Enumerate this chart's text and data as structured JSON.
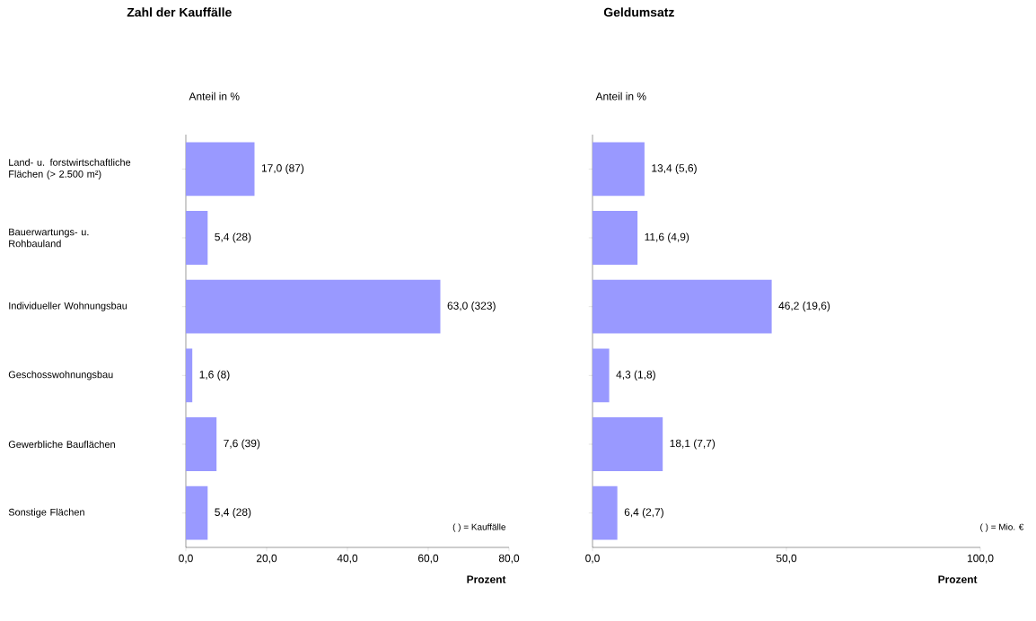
{
  "chart_data": [
    {
      "type": "bar",
      "orientation": "horizontal",
      "title": "Zahl der Kauffälle",
      "subtitle": "Anteil in %",
      "xlabel": "Prozent",
      "categories": [
        "Land- u. forstwirtschaftliche Flächen (> 2.500 m²)",
        "Bauerwartungs- u. Rohbauland",
        "Individueller Wohnungsbau",
        "Geschosswohnungsbau",
        "Gewerbliche Bauflächen",
        "Sonstige Flächen"
      ],
      "values": [
        17.0,
        5.4,
        63.0,
        1.6,
        7.6,
        5.4
      ],
      "value_labels": [
        "17,0  (87)",
        "5,4  (28)",
        "63,0  (323)",
        "1,6 (8)",
        "7,6  (39)",
        "5,4  (28)"
      ],
      "color": "#9999ff",
      "xlim": [
        0,
        80
      ],
      "xticks": [
        {
          "value": 0,
          "label": "0,0"
        },
        {
          "value": 20,
          "label": "20,0"
        },
        {
          "value": 40,
          "label": "40,0"
        },
        {
          "value": 60,
          "label": "60,0"
        },
        {
          "value": 80,
          "label": "80,0"
        }
      ],
      "annotations": [
        "( ) = Kauffälle"
      ]
    },
    {
      "type": "bar",
      "orientation": "horizontal",
      "title": "Geldumsatz",
      "subtitle": "Anteil in %",
      "xlabel": "Prozent",
      "categories": [
        null,
        null,
        null,
        null,
        null,
        null
      ],
      "values": [
        13.4,
        11.6,
        46.2,
        4.3,
        18.1,
        6.4
      ],
      "value_labels": [
        "13,4  (5,6)",
        "11,6  (4,9)",
        "46,2  (19,6)",
        "4,3  (1,8)",
        "18,1  (7,7)",
        "6,4  (2,7)"
      ],
      "color": "#9999ff",
      "xlim": [
        0,
        100
      ],
      "xticks": [
        {
          "value": 0,
          "label": "0,0"
        },
        {
          "value": 50,
          "label": "50,0"
        },
        {
          "value": 100,
          "label": "100,0"
        }
      ],
      "tick_labels": "x",
      "annotations": [
        "( ) = Mio. €"
      ]
    }
  ]
}
